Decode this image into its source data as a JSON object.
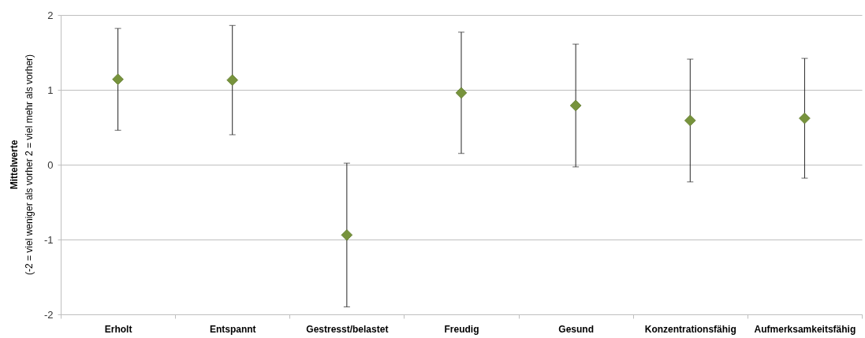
{
  "chart_data": {
    "type": "scatter",
    "ylabel": "Mittelwerte\n(-2 = viel weniger als vorher  2 = viel mehr als vorher)",
    "categories": [
      "Erholt",
      "Entspannt",
      "Gestresst/belastet",
      "Freudig",
      "Gesund",
      "Konzentrationsfähig",
      "Aufmerksamkeitsfähig"
    ],
    "values": [
      1.14,
      1.13,
      -0.94,
      0.96,
      0.79,
      0.59,
      0.62
    ],
    "errors": [
      0.68,
      0.73,
      0.96,
      0.81,
      0.82,
      0.82,
      0.8
    ],
    "color": "#77933c",
    "marker": "diamond",
    "ylim": [
      -2,
      2
    ],
    "yticks": [
      -2,
      -1,
      0,
      1,
      2
    ],
    "grid": "y"
  }
}
